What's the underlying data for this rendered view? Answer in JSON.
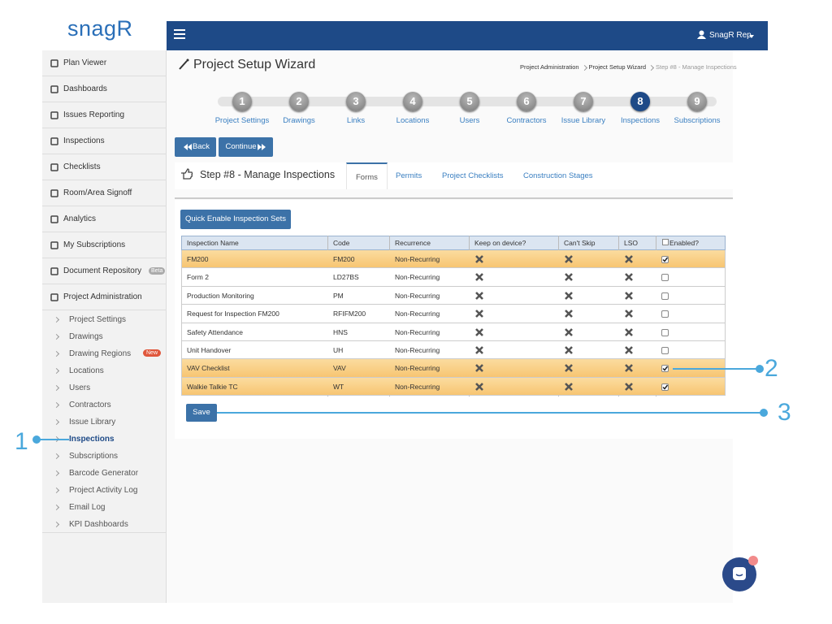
{
  "logo": "snagR",
  "header": {
    "user": "SnagR Rep"
  },
  "sidebar": {
    "items": [
      {
        "label": "Plan Viewer"
      },
      {
        "label": "Dashboards"
      },
      {
        "label": "Issues Reporting"
      },
      {
        "label": "Inspections"
      },
      {
        "label": "Checklists"
      },
      {
        "label": "Room/Area Signoff"
      },
      {
        "label": "Analytics"
      },
      {
        "label": "My Subscriptions"
      },
      {
        "label": "Document Repository",
        "badge": "Beta"
      },
      {
        "label": "Project Administration"
      }
    ],
    "subitems": [
      {
        "label": "Project Settings"
      },
      {
        "label": "Drawings"
      },
      {
        "label": "Drawing Regions",
        "badge": "New"
      },
      {
        "label": "Locations"
      },
      {
        "label": "Users"
      },
      {
        "label": "Contractors"
      },
      {
        "label": "Issue Library"
      },
      {
        "label": "Inspections",
        "active": true
      },
      {
        "label": "Subscriptions"
      },
      {
        "label": "Barcode Generator"
      },
      {
        "label": "Project Activity Log"
      },
      {
        "label": "Email Log"
      },
      {
        "label": "KPI Dashboards"
      }
    ]
  },
  "page": {
    "title": "Project Setup Wizard",
    "breadcrumbs": [
      "Project Administration",
      "Project Setup Wizard",
      "Step #8 - Manage Inspections"
    ]
  },
  "wizard": {
    "steps": [
      {
        "number": 1,
        "label": "Project Settings"
      },
      {
        "number": 2,
        "label": "Drawings"
      },
      {
        "number": 3,
        "label": "Links"
      },
      {
        "number": 4,
        "label": "Locations"
      },
      {
        "number": 5,
        "label": "Users"
      },
      {
        "number": 6,
        "label": "Contractors"
      },
      {
        "number": 7,
        "label": "Issue Library"
      },
      {
        "number": 8,
        "label": "Inspections",
        "active": true
      },
      {
        "number": 9,
        "label": "Subscriptions"
      }
    ],
    "back": "Back",
    "continue": "Continue"
  },
  "step_header": {
    "title": "Step #8 - Manage Inspections",
    "tabs": [
      {
        "label": "Forms",
        "active": true
      },
      {
        "label": "Permits"
      },
      {
        "label": "Project Checklists"
      },
      {
        "label": "Construction Stages"
      }
    ]
  },
  "quick_enable": "Quick Enable Inspection Sets",
  "table": {
    "columns": [
      "Inspection Name",
      "Code",
      "Recurrence",
      "Keep on device?",
      "Can't Skip",
      "LSO",
      "Enabled?"
    ],
    "rows": [
      {
        "name": "FM200",
        "code": "FM200",
        "recurrence": "Non-Recurring",
        "keep_on_device": false,
        "cant_skip": false,
        "lso": false,
        "enabled": true
      },
      {
        "name": "Form 2",
        "code": "LD27BS",
        "recurrence": "Non-Recurring",
        "keep_on_device": false,
        "cant_skip": false,
        "lso": false,
        "enabled": false
      },
      {
        "name": "Production Monitoring",
        "code": "PM",
        "recurrence": "Non-Recurring",
        "keep_on_device": false,
        "cant_skip": false,
        "lso": false,
        "enabled": false
      },
      {
        "name": "Request for Inspection FM200",
        "code": "RFIFM200",
        "recurrence": "Non-Recurring",
        "keep_on_device": false,
        "cant_skip": false,
        "lso": false,
        "enabled": false
      },
      {
        "name": "Safety Attendance",
        "code": "HNS",
        "recurrence": "Non-Recurring",
        "keep_on_device": false,
        "cant_skip": false,
        "lso": false,
        "enabled": false
      },
      {
        "name": "Unit Handover",
        "code": "UH",
        "recurrence": "Non-Recurring",
        "keep_on_device": false,
        "cant_skip": false,
        "lso": false,
        "enabled": false
      },
      {
        "name": "VAV Checklist",
        "code": "VAV",
        "recurrence": "Non-Recurring",
        "keep_on_device": false,
        "cant_skip": false,
        "lso": false,
        "enabled": true
      },
      {
        "name": "Walkie Talkie TC",
        "code": "WT",
        "recurrence": "Non-Recurring",
        "keep_on_device": false,
        "cant_skip": false,
        "lso": false,
        "enabled": true
      }
    ]
  },
  "save": "Save",
  "annotations": [
    1,
    2,
    3
  ]
}
